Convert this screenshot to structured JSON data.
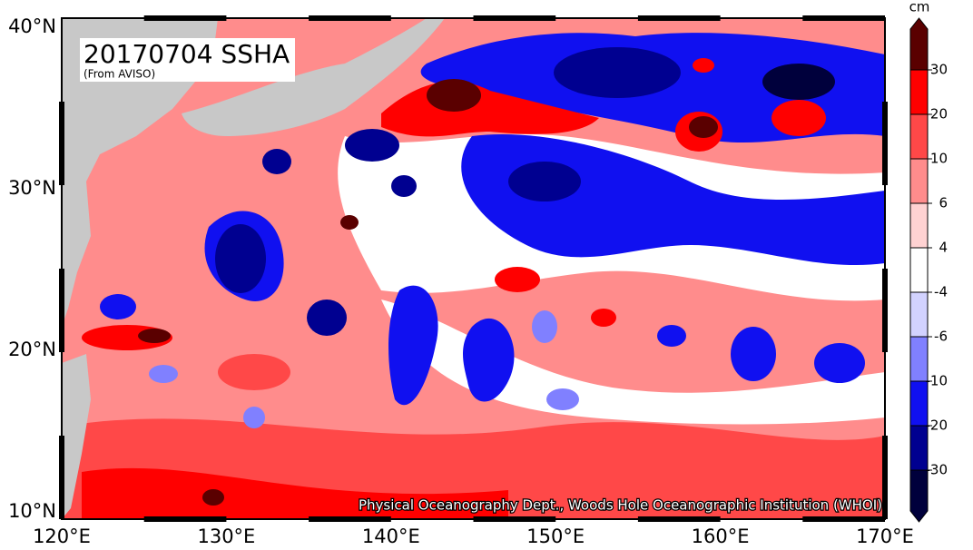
{
  "map": {
    "title": "20170704 SSHA",
    "subtitle": "(From AVISO)",
    "credit": "Physical Oceanography Dept., Woods Hole Oceanographic Institution (WHOI)",
    "lon_labels": [
      "120°E",
      "130°E",
      "140°E",
      "150°E",
      "160°E",
      "170°E"
    ],
    "lat_labels": [
      "40°N",
      "30°N",
      "20°N",
      "10°N"
    ]
  },
  "colorbar": {
    "unit": "cm",
    "ticks": [
      30,
      20,
      10,
      6,
      4,
      -4,
      -6,
      -10,
      -20,
      -30
    ],
    "colors": [
      "#5a0000",
      "#ff0000",
      "#ff4848",
      "#ff8c8c",
      "#ffd2d2",
      "#ffffff",
      "#d2d2ff",
      "#8080ff",
      "#1010f0",
      "#000090",
      "#00003c"
    ]
  }
}
